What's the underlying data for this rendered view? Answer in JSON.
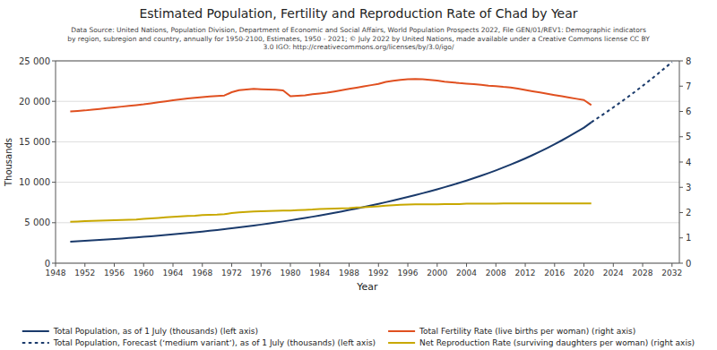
{
  "chart_data": {
    "type": "line",
    "title": "Estimated Population, Fertility and Reproduction Rate of Chad by Year",
    "subtitle": "Data Source: United Nations, Population Division, Department of Economic and Social Affairs, World Population Prospects 2022, File GEN/01/REV1: Demographic indicators\nby region, subregion and country, annually for 1950-2100, Estimates, 1950 - 2021; © July 2022 by United Nations, made available under a Creative Commons license CC BY\n3.0 IGO: http://creativecommons.org/licenses/by/3.0/igo/",
    "x_label": "Year",
    "y_label": "Thousands",
    "xlim": [
      1948,
      2033
    ],
    "xticks": [
      1948,
      1952,
      1956,
      1960,
      1964,
      1968,
      1972,
      1976,
      1980,
      1984,
      1988,
      1992,
      1996,
      2000,
      2004,
      2008,
      2012,
      2016,
      2020,
      2024,
      2028,
      2032
    ],
    "ylim": [
      0,
      25000
    ],
    "yticks": [
      0,
      {
        "value": 5000,
        "label": "5 000"
      },
      {
        "value": 10000,
        "label": "10 000"
      },
      {
        "value": 15000,
        "label": "15 000"
      },
      {
        "value": 20000,
        "label": "20 000"
      },
      {
        "value": 25000,
        "label": "25 000"
      }
    ],
    "y2lim": [
      0,
      8
    ],
    "y2ticks": [
      0,
      1,
      2,
      3,
      4,
      5,
      6,
      7,
      8
    ],
    "grid": "y",
    "legend": "bottom",
    "series": [
      {
        "name": "Total Population, as of 1 July (thousands) (left axis)",
        "color": "#1a3a6b",
        "line_style": "solid",
        "axis": "y",
        "x": [
          1950,
          1951,
          1952,
          1953,
          1954,
          1955,
          1956,
          1957,
          1958,
          1959,
          1960,
          1961,
          1962,
          1963,
          1964,
          1965,
          1966,
          1967,
          1968,
          1969,
          1970,
          1971,
          1972,
          1973,
          1974,
          1975,
          1976,
          1977,
          1978,
          1979,
          1980,
          1981,
          1982,
          1983,
          1984,
          1985,
          1986,
          1987,
          1988,
          1989,
          1990,
          1991,
          1992,
          1993,
          1994,
          1995,
          1996,
          1997,
          1998,
          1999,
          2000,
          2001,
          2002,
          2003,
          2004,
          2005,
          2006,
          2007,
          2008,
          2009,
          2010,
          2011,
          2012,
          2013,
          2014,
          2015,
          2016,
          2017,
          2018,
          2019,
          2020,
          2021
        ],
        "values": [
          2658,
          2710,
          2762,
          2816,
          2872,
          2930,
          2991,
          3054,
          3119,
          3186,
          3255,
          3327,
          3401,
          3478,
          3558,
          3641,
          3727,
          3816,
          3908,
          4003,
          4102,
          4204,
          4310,
          4419,
          4533,
          4650,
          4771,
          4896,
          5025,
          5158,
          5296,
          5439,
          5587,
          5739,
          5897,
          6059,
          6226,
          6398,
          6575,
          6757,
          6944,
          7136,
          7333,
          7535,
          7744,
          7958,
          8179,
          8406,
          8640,
          8880,
          9129,
          9386,
          9651,
          9926,
          10211,
          10507,
          10815,
          11135,
          11468,
          11815,
          12176,
          12553,
          12947,
          13358,
          13786,
          14233,
          14698,
          15182,
          15685,
          16207,
          16749,
          17414
        ]
      },
      {
        "name": "Total Population, Forecast (ʻmedium variantʼ), as of 1 July (thousands) (left axis)",
        "color": "#1a3a6b",
        "line_style": "dotted",
        "axis": "y",
        "x": [
          2021,
          2022,
          2023,
          2024,
          2025,
          2026,
          2027,
          2028,
          2029,
          2030,
          2031,
          2032
        ],
        "values": [
          17414,
          18010,
          18621,
          19248,
          19890,
          20549,
          21224,
          21916,
          22625,
          23351,
          24094,
          24855
        ]
      },
      {
        "name": "Total Fertility Rate (live births per woman) (right axis)",
        "color": "#e05020",
        "line_style": "solid",
        "axis": "y2",
        "x": [
          1950,
          1951,
          1952,
          1953,
          1954,
          1955,
          1956,
          1957,
          1958,
          1959,
          1960,
          1961,
          1962,
          1963,
          1964,
          1965,
          1966,
          1967,
          1968,
          1969,
          1970,
          1971,
          1972,
          1973,
          1974,
          1975,
          1976,
          1977,
          1978,
          1979,
          1980,
          1981,
          1982,
          1983,
          1984,
          1985,
          1986,
          1987,
          1988,
          1989,
          1990,
          1991,
          1992,
          1993,
          1994,
          1995,
          1996,
          1997,
          1998,
          1999,
          2000,
          2001,
          2002,
          2003,
          2004,
          2005,
          2006,
          2007,
          2008,
          2009,
          2010,
          2011,
          2012,
          2013,
          2014,
          2015,
          2016,
          2017,
          2018,
          2019,
          2020,
          2021
        ],
        "values": [
          6.0,
          6.02,
          6.04,
          6.07,
          6.1,
          6.13,
          6.16,
          6.19,
          6.22,
          6.25,
          6.28,
          6.32,
          6.36,
          6.4,
          6.44,
          6.48,
          6.51,
          6.54,
          6.57,
          6.59,
          6.61,
          6.63,
          6.76,
          6.84,
          6.87,
          6.89,
          6.88,
          6.87,
          6.86,
          6.83,
          6.6,
          6.62,
          6.64,
          6.68,
          6.71,
          6.74,
          6.79,
          6.84,
          6.89,
          6.94,
          6.99,
          7.04,
          7.09,
          7.17,
          7.21,
          7.25,
          7.27,
          7.28,
          7.27,
          7.25,
          7.22,
          7.18,
          7.15,
          7.12,
          7.1,
          7.08,
          7.05,
          7.02,
          7.0,
          6.97,
          6.95,
          6.9,
          6.85,
          6.8,
          6.75,
          6.7,
          6.65,
          6.6,
          6.55,
          6.5,
          6.45,
          6.25
        ]
      },
      {
        "name": "Net Reproduction Rate (surviving daughters per woman) (right axis)",
        "color": "#c8a800",
        "line_style": "solid",
        "axis": "y2",
        "x": [
          1950,
          1951,
          1952,
          1953,
          1954,
          1955,
          1956,
          1957,
          1958,
          1959,
          1960,
          1961,
          1962,
          1963,
          1964,
          1965,
          1966,
          1967,
          1968,
          1969,
          1970,
          1971,
          1972,
          1973,
          1974,
          1975,
          1976,
          1977,
          1978,
          1979,
          1980,
          1981,
          1982,
          1983,
          1984,
          1985,
          1986,
          1987,
          1988,
          1989,
          1990,
          1991,
          1992,
          1993,
          1994,
          1995,
          1996,
          1997,
          1998,
          1999,
          2000,
          2001,
          2002,
          2003,
          2004,
          2005,
          2006,
          2007,
          2008,
          2009,
          2010,
          2011,
          2012,
          2013,
          2014,
          2015,
          2016,
          2017,
          2018,
          2019,
          2020,
          2021
        ],
        "values": [
          1.64,
          1.65,
          1.66,
          1.67,
          1.68,
          1.69,
          1.7,
          1.71,
          1.72,
          1.73,
          1.75,
          1.77,
          1.79,
          1.81,
          1.83,
          1.85,
          1.87,
          1.88,
          1.9,
          1.91,
          1.92,
          1.94,
          1.98,
          2.01,
          2.03,
          2.04,
          2.05,
          2.06,
          2.07,
          2.08,
          2.08,
          2.1,
          2.11,
          2.12,
          2.14,
          2.15,
          2.16,
          2.17,
          2.18,
          2.2,
          2.21,
          2.23,
          2.25,
          2.27,
          2.29,
          2.31,
          2.32,
          2.33,
          2.33,
          2.33,
          2.33,
          2.34,
          2.34,
          2.34,
          2.35,
          2.35,
          2.35,
          2.35,
          2.35,
          2.36,
          2.36,
          2.36,
          2.36,
          2.36,
          2.36,
          2.36,
          2.36,
          2.36,
          2.36,
          2.36,
          2.36,
          2.36
        ]
      }
    ]
  }
}
